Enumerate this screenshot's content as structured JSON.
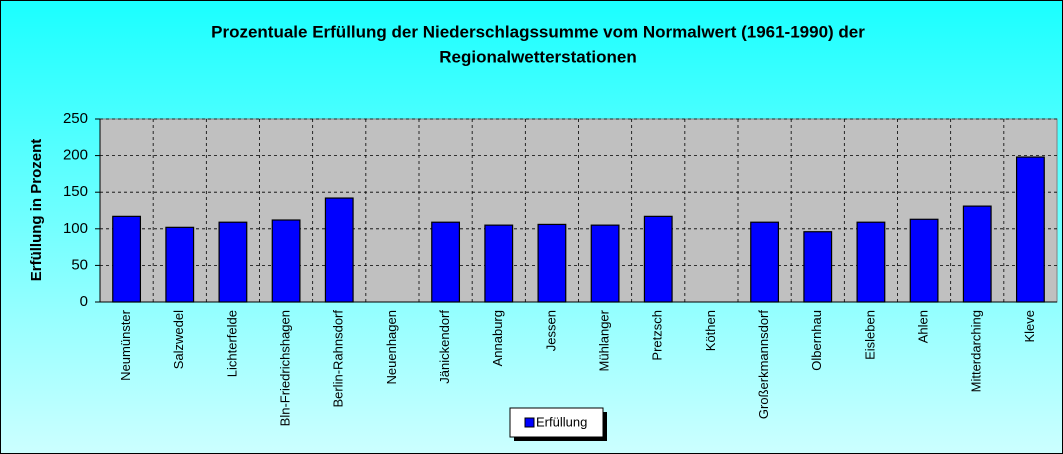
{
  "chart_data": {
    "type": "bar",
    "title": [
      "Prozentuale Erfüllung der Niederschlagssumme vom Normalwert (1961-1990) der",
      "Regionalwetterstationen"
    ],
    "y_label": "Erfüllung  in Prozent",
    "categories": [
      "Neumünster",
      "Salzwedel",
      "Lichterfelde",
      "Bln-Friedrichshagen",
      "Berlin-Rahnsdorf",
      "Neuenhagen",
      "Jänickendorf",
      "Annaburg",
      "Jessen",
      "Mühlanger",
      "Pretzsch",
      "Köthen",
      "Großerkmannsdorf",
      "Olbernhau",
      "Eisleben",
      "Ahlen",
      "Mitterdarching",
      "Kleve"
    ],
    "series": [
      {
        "name": "Erfüllung",
        "color": "#0000ff",
        "values": [
          117,
          102,
          109,
          112,
          142,
          null,
          109,
          105,
          106,
          105,
          117,
          null,
          109,
          96,
          109,
          113,
          131,
          198
        ]
      }
    ],
    "ylim": [
      0,
      250
    ],
    "yticks": [
      0,
      50,
      100,
      150,
      200,
      250
    ],
    "grid": true,
    "legend": "bottom"
  }
}
